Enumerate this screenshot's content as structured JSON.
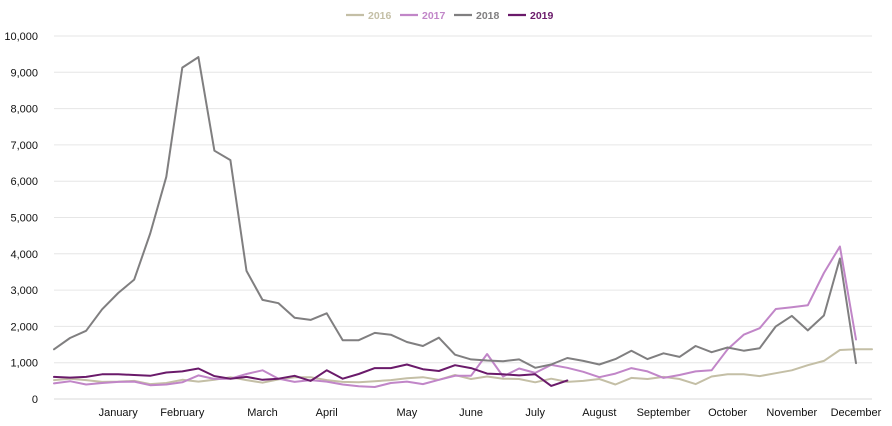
{
  "chart_data": {
    "type": "line",
    "title": "",
    "xlabel": "",
    "ylabel": "",
    "ylim": [
      0,
      10000
    ],
    "yticks": [
      0,
      1000,
      2000,
      3000,
      4000,
      5000,
      6000,
      7000,
      8000,
      9000,
      10000
    ],
    "ytick_labels": [
      "0",
      "1,000",
      "2,000",
      "3,000",
      "4,000",
      "5,000",
      "6,000",
      "7,000",
      "8,000",
      "9,000",
      "10,000"
    ],
    "x_range": [
      1,
      52
    ],
    "month_labels": [
      "January",
      "February",
      "March",
      "April",
      "May",
      "June",
      "July",
      "August",
      "September",
      "October",
      "November",
      "December"
    ],
    "month_positions": [
      5,
      9,
      14,
      18,
      23,
      27,
      31,
      35,
      39,
      43,
      47,
      51
    ],
    "grid": true,
    "legend_position": "top-center",
    "series": [
      {
        "name": "2016",
        "color": "#c4bfa6",
        "x": [
          1,
          2,
          3,
          4,
          5,
          6,
          7,
          8,
          9,
          10,
          11,
          12,
          13,
          14,
          15,
          16,
          17,
          18,
          19,
          20,
          21,
          22,
          23,
          24,
          25,
          26,
          27,
          28,
          29,
          30,
          31,
          32,
          33,
          34,
          35,
          36,
          37,
          38,
          39,
          40,
          41,
          42,
          43,
          44,
          45,
          46,
          47,
          48,
          49,
          50,
          51,
          52
        ],
        "values": [
          520,
          560,
          520,
          470,
          480,
          500,
          410,
          440,
          530,
          480,
          530,
          600,
          520,
          450,
          540,
          600,
          600,
          520,
          470,
          460,
          490,
          520,
          570,
          600,
          530,
          660,
          550,
          620,
          560,
          550,
          460,
          560,
          470,
          500,
          550,
          400,
          580,
          550,
          610,
          550,
          410,
          620,
          680,
          680,
          630,
          710,
          790,
          930,
          1050,
          1350,
          1370,
          1370
        ]
      },
      {
        "name": "2017",
        "color": "#c186c8",
        "x": [
          1,
          2,
          3,
          4,
          5,
          6,
          7,
          8,
          9,
          10,
          11,
          12,
          13,
          14,
          15,
          16,
          17,
          18,
          19,
          20,
          21,
          22,
          23,
          24,
          25,
          26,
          27,
          28,
          29,
          30,
          31,
          32,
          33,
          34,
          35,
          36,
          37,
          38,
          39,
          40,
          41,
          42,
          43,
          44,
          45,
          46,
          47,
          48,
          49,
          50,
          51,
          52
        ],
        "values": [
          430,
          490,
          400,
          440,
          470,
          480,
          380,
          400,
          460,
          650,
          550,
          560,
          690,
          790,
          560,
          470,
          520,
          480,
          400,
          350,
          330,
          440,
          480,
          410,
          530,
          640,
          640,
          1240,
          620,
          840,
          720,
          940,
          860,
          750,
          600,
          700,
          850,
          760,
          580,
          660,
          760,
          790,
          1370,
          1770,
          1950,
          2480,
          2530,
          2580,
          3470,
          4200,
          1640,
          null
        ]
      },
      {
        "name": "2018",
        "color": "#807f80",
        "x": [
          1,
          2,
          3,
          4,
          5,
          6,
          7,
          8,
          9,
          10,
          11,
          12,
          13,
          14,
          15,
          16,
          17,
          18,
          19,
          20,
          21,
          22,
          23,
          24,
          25,
          26,
          27,
          28,
          29,
          30,
          31,
          32,
          33,
          34,
          35,
          36,
          37,
          38,
          39,
          40,
          41,
          42,
          43,
          44,
          45,
          46,
          47,
          48,
          49,
          50,
          51,
          52
        ],
        "values": [
          1370,
          1680,
          1880,
          2470,
          2920,
          3290,
          4560,
          6120,
          9130,
          9420,
          6840,
          6580,
          3530,
          2730,
          2640,
          2240,
          2180,
          2360,
          1620,
          1620,
          1820,
          1770,
          1570,
          1460,
          1690,
          1220,
          1090,
          1060,
          1040,
          1090,
          860,
          950,
          1130,
          1050,
          950,
          1100,
          1330,
          1100,
          1260,
          1160,
          1460,
          1290,
          1420,
          1330,
          1400,
          2000,
          2290,
          1890,
          2300,
          3870,
          990,
          null
        ]
      },
      {
        "name": "2019",
        "color": "#6a1a6a",
        "x": [
          1,
          2,
          3,
          4,
          5,
          6,
          7,
          8,
          9,
          10,
          11,
          12,
          13,
          14,
          15,
          16,
          17,
          18,
          19,
          20,
          21,
          22,
          23,
          24,
          25,
          26,
          27,
          28,
          29,
          30,
          31,
          32,
          33
        ],
        "values": [
          610,
          590,
          610,
          680,
          680,
          660,
          640,
          730,
          760,
          840,
          630,
          560,
          610,
          530,
          560,
          640,
          500,
          790,
          560,
          690,
          850,
          850,
          950,
          820,
          770,
          930,
          850,
          700,
          680,
          650,
          680,
          360,
          510
        ]
      }
    ]
  }
}
